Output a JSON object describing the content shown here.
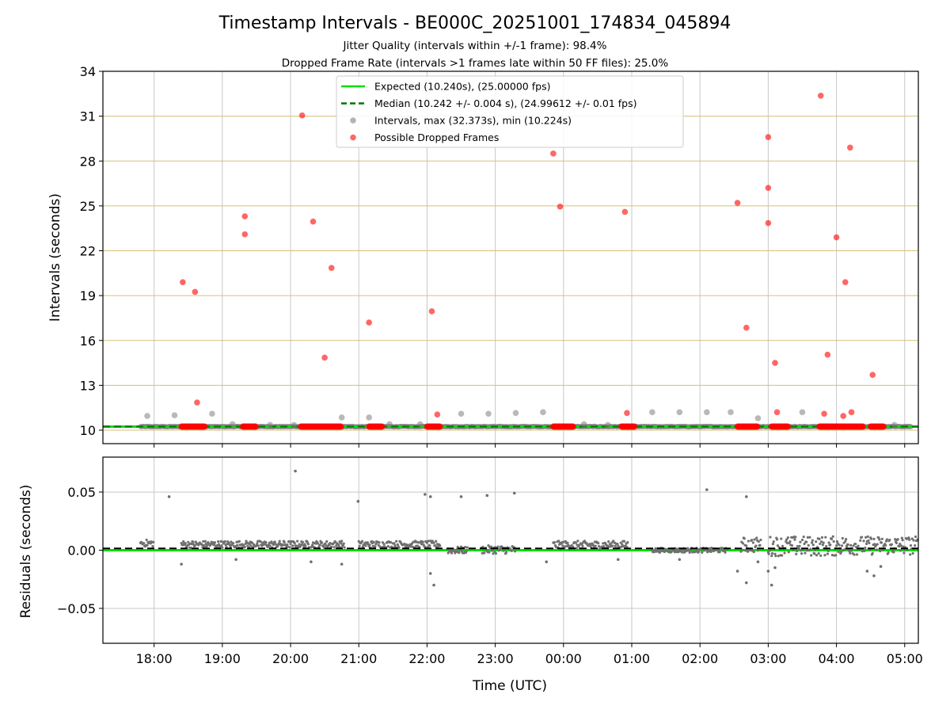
{
  "colors": {
    "expected": "#00dd00",
    "median": "#007700",
    "intervals": "#808080",
    "dropped": "#ff0000",
    "hgrid_top": "#d4c07a",
    "grid": "#c8c8c8",
    "residual_points": "#707070"
  },
  "chart_data": [
    {
      "type": "scatter",
      "title": "Timestamp Intervals - BE000C_20251001_174834_045894",
      "subtitle_lines": [
        "Jitter Quality (intervals within +/-1 frame): 98.4%",
        "Dropped Frame Rate (intervals >1 frames late within 50 FF files): 25.0%"
      ],
      "ylabel": "Intervals (seconds)",
      "xlabel": "",
      "ylim": [
        9.1,
        34
      ],
      "yticks": [
        10,
        13,
        16,
        19,
        22,
        25,
        28,
        31,
        34
      ],
      "xlim_hours": [
        17.25,
        29.2
      ],
      "grid": true,
      "legend_placement": "top-center",
      "series": [
        {
          "name": "Expected (10.240s), (25.00000 fps)",
          "kind": "hline",
          "value": 10.24
        },
        {
          "name": "Median (10.242 +/- 0.004 s), (24.99612 +/- 0.01 fps)",
          "kind": "hline-dashed",
          "value": 10.242
        },
        {
          "name": "Intervals, max (32.373s), min (10.224s)",
          "kind": "points",
          "band": {
            "from": 17.8,
            "to": 29.1,
            "value": 10.24
          },
          "points": [
            [
              17.9,
              10.95
            ],
            [
              18.3,
              11.0
            ],
            [
              18.85,
              11.1
            ],
            [
              19.15,
              10.4
            ],
            [
              19.7,
              10.35
            ],
            [
              20.05,
              10.35
            ],
            [
              20.75,
              10.85
            ],
            [
              21.15,
              10.85
            ],
            [
              21.45,
              10.4
            ],
            [
              21.9,
              10.4
            ],
            [
              22.5,
              11.1
            ],
            [
              22.9,
              11.1
            ],
            [
              23.3,
              11.15
            ],
            [
              23.7,
              11.2
            ],
            [
              24.3,
              10.4
            ],
            [
              24.65,
              10.35
            ],
            [
              25.3,
              11.2
            ],
            [
              25.7,
              11.2
            ],
            [
              26.1,
              11.2
            ],
            [
              26.45,
              11.2
            ],
            [
              26.85,
              10.8
            ],
            [
              27.5,
              11.2
            ],
            [
              28.85,
              10.35
            ]
          ]
        },
        {
          "name": "Possible Dropped Frames",
          "kind": "points",
          "clusters": [
            [
              18.4,
              18.75
            ],
            [
              19.3,
              19.5
            ],
            [
              20.15,
              20.75
            ],
            [
              21.15,
              21.35
            ],
            [
              22.0,
              22.2
            ],
            [
              23.85,
              24.15
            ],
            [
              24.85,
              25.05
            ],
            [
              26.55,
              26.85
            ],
            [
              27.05,
              27.3
            ],
            [
              27.75,
              28.4
            ],
            [
              28.5,
              28.7
            ]
          ],
          "cluster_value": 10.24,
          "points": [
            [
              18.42,
              19.9
            ],
            [
              18.6,
              19.25
            ],
            [
              18.63,
              11.85
            ],
            [
              19.33,
              24.3
            ],
            [
              19.33,
              23.1
            ],
            [
              20.17,
              31.05
            ],
            [
              20.33,
              23.95
            ],
            [
              20.5,
              14.85
            ],
            [
              20.6,
              20.85
            ],
            [
              21.15,
              17.2
            ],
            [
              22.07,
              17.95
            ],
            [
              22.15,
              11.05
            ],
            [
              23.85,
              28.5
            ],
            [
              23.95,
              24.95
            ],
            [
              24.9,
              24.6
            ],
            [
              24.93,
              11.15
            ],
            [
              26.55,
              25.2
            ],
            [
              26.68,
              16.85
            ],
            [
              27.0,
              29.6
            ],
            [
              27.0,
              26.2
            ],
            [
              27.0,
              23.85
            ],
            [
              27.1,
              14.5
            ],
            [
              27.13,
              11.2
            ],
            [
              27.77,
              32.37
            ],
            [
              27.82,
              11.1
            ],
            [
              27.87,
              15.05
            ],
            [
              28.0,
              22.9
            ],
            [
              28.13,
              19.9
            ],
            [
              28.2,
              28.9
            ],
            [
              28.1,
              10.95
            ],
            [
              28.22,
              11.2
            ],
            [
              28.53,
              13.7
            ]
          ]
        }
      ]
    },
    {
      "type": "scatter",
      "ylabel": "Residuals (seconds)",
      "xlabel": "Time (UTC)",
      "ylim": [
        -0.08,
        0.08
      ],
      "yticks": [
        0.05,
        0.0,
        -0.05
      ],
      "ytick_labels": [
        "0.05",
        "0.00",
        "−0.05"
      ],
      "xlim_hours": [
        17.25,
        29.2
      ],
      "xticks": [
        18,
        19,
        20,
        21,
        22,
        23,
        24,
        25,
        26,
        27,
        28,
        29
      ],
      "xtick_labels": [
        "18:00",
        "19:00",
        "20:00",
        "21:00",
        "22:00",
        "23:00",
        "00:00",
        "01:00",
        "02:00",
        "03:00",
        "04:00",
        "05:00"
      ],
      "grid": true,
      "series": [
        {
          "kind": "hline",
          "value": 0.0
        },
        {
          "kind": "hline-dashed",
          "value": 0.0015
        },
        {
          "kind": "points",
          "bands": [
            [
              17.8,
              18.0,
              0.003,
              0.009
            ],
            [
              18.4,
              20.8,
              0.002,
              0.008
            ],
            [
              21.0,
              22.2,
              0.002,
              0.008
            ],
            [
              22.3,
              22.6,
              -0.003,
              0.003
            ],
            [
              22.8,
              23.3,
              -0.003,
              0.004
            ],
            [
              23.85,
              24.95,
              0.001,
              0.008
            ],
            [
              25.3,
              26.4,
              -0.002,
              0.002
            ],
            [
              26.6,
              26.9,
              -0.002,
              0.011
            ],
            [
              27.0,
              28.0,
              -0.005,
              0.012
            ],
            [
              28.0,
              29.2,
              -0.004,
              0.012
            ]
          ],
          "outliers": [
            [
              18.22,
              0.046
            ],
            [
              20.07,
              0.068
            ],
            [
              20.99,
              0.042
            ],
            [
              21.97,
              0.048
            ],
            [
              22.05,
              0.046
            ],
            [
              22.5,
              0.046
            ],
            [
              22.88,
              0.047
            ],
            [
              23.28,
              0.049
            ],
            [
              26.1,
              0.052
            ],
            [
              26.68,
              0.046
            ],
            [
              18.4,
              -0.012
            ],
            [
              19.2,
              -0.008
            ],
            [
              20.3,
              -0.01
            ],
            [
              20.75,
              -0.012
            ],
            [
              22.1,
              -0.03
            ],
            [
              22.05,
              -0.02
            ],
            [
              23.75,
              -0.01
            ],
            [
              24.8,
              -0.008
            ],
            [
              25.7,
              -0.008
            ],
            [
              26.55,
              -0.018
            ],
            [
              26.68,
              -0.028
            ],
            [
              26.85,
              -0.01
            ],
            [
              27.0,
              -0.018
            ],
            [
              27.05,
              -0.03
            ],
            [
              27.1,
              -0.015
            ],
            [
              28.45,
              -0.018
            ],
            [
              28.55,
              -0.022
            ],
            [
              28.65,
              -0.014
            ]
          ]
        }
      ]
    }
  ]
}
